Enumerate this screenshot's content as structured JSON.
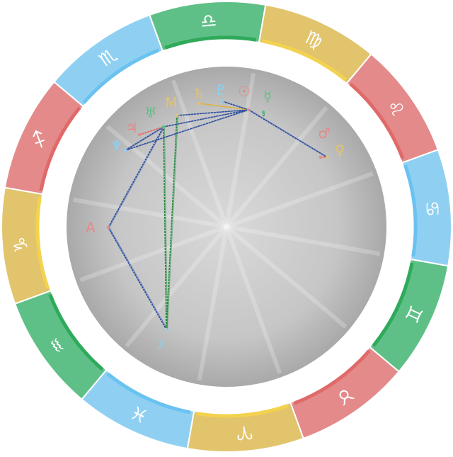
{
  "wheel": {
    "signs": [
      {
        "name": "Aries",
        "glyph": "♈",
        "color": "#e2c46c"
      },
      {
        "name": "Taurus",
        "glyph": "♉",
        "color": "#e48a8a"
      },
      {
        "name": "Gemini",
        "glyph": "♊",
        "color": "#5fc087"
      },
      {
        "name": "Cancer",
        "glyph": "♋",
        "color": "#8fd0f2"
      },
      {
        "name": "Leo",
        "glyph": "♌",
        "color": "#e48a8a"
      },
      {
        "name": "Virgo",
        "glyph": "♍",
        "color": "#e2c46c"
      },
      {
        "name": "Libra",
        "glyph": "♎",
        "color": "#5fc087"
      },
      {
        "name": "Scorpio",
        "glyph": "♏",
        "color": "#8fd0f2"
      },
      {
        "name": "Sagittarius",
        "glyph": "♐",
        "color": "#e48a8a"
      },
      {
        "name": "Capricorn",
        "glyph": "♑",
        "color": "#e2c46c"
      },
      {
        "name": "Aquarius",
        "glyph": "♒",
        "color": "#5fc087"
      },
      {
        "name": "Pisces",
        "glyph": "♓",
        "color": "#8fd0f2"
      }
    ],
    "sign_edge_colors": {
      "#e2c46c": "#f3d24e",
      "#e48a8a": "#e06a6a",
      "#5fc087": "#2eaa5a",
      "#8fd0f2": "#6ac2f0"
    }
  },
  "points": [
    {
      "id": "moon",
      "glyph": "☽",
      "color": "#8fd0f2"
    },
    {
      "id": "ascendant",
      "glyph": "A",
      "color": "#e48a8a"
    },
    {
      "id": "neptune",
      "glyph": "♆",
      "color": "#8fd0f2"
    },
    {
      "id": "jupiter",
      "glyph": "♃",
      "color": "#e48a8a"
    },
    {
      "id": "uranus",
      "glyph": "♅",
      "color": "#5fc087"
    },
    {
      "id": "midheaven",
      "glyph": "M",
      "color": "#e2c46c"
    },
    {
      "id": "saturn",
      "glyph": "♄",
      "color": "#e2c46c"
    },
    {
      "id": "pluto",
      "glyph": "♇",
      "color": "#8fd0f2"
    },
    {
      "id": "sun",
      "glyph": "☉",
      "color": "#e48a8a"
    },
    {
      "id": "mercury",
      "glyph": "☿",
      "color": "#5fc087"
    },
    {
      "id": "mars",
      "glyph": "♂",
      "color": "#e48a8a"
    },
    {
      "id": "venus",
      "glyph": "♀",
      "color": "#e2c46c"
    }
  ],
  "aspects": [
    {
      "from": "ascendant",
      "to": "moon",
      "color": "#2b4fa0"
    },
    {
      "from": "ascendant",
      "to": "uranus",
      "color": "#2b4fa0"
    },
    {
      "from": "moon",
      "to": "uranus",
      "color": "#1f8c3f"
    },
    {
      "from": "moon",
      "to": "midheaven",
      "color": "#1f8c3f"
    },
    {
      "from": "neptune",
      "to": "sun",
      "color": "#2b4fa0"
    },
    {
      "from": "neptune",
      "to": "uranus",
      "color": "#2b4fa0"
    },
    {
      "from": "jupiter",
      "to": "uranus",
      "color": "#e06a6a"
    },
    {
      "from": "uranus",
      "to": "sun",
      "color": "#2b4fa0"
    },
    {
      "from": "midheaven",
      "to": "sun",
      "color": "#2b4fa0"
    },
    {
      "from": "saturn",
      "to": "sun",
      "color": "#e2b030"
    },
    {
      "from": "pluto",
      "to": "sun",
      "color": "#2b4fa0"
    },
    {
      "from": "sun",
      "to": "venus",
      "color": "#2b4fa0"
    },
    {
      "from": "mars",
      "to": "venus",
      "color": "#e06a6a"
    },
    {
      "from": "mercury",
      "to": "mercury",
      "color": "#1f8c3f"
    }
  ]
}
